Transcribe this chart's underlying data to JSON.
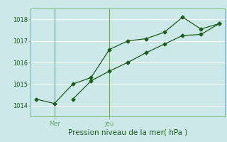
{
  "title": "Pression niveau de la mer( hPa )",
  "bg_color": "#cce8e8",
  "grid_color": "#ffffff",
  "line_color": "#1a5e1a",
  "spine_color": "#6aaa6a",
  "ylim": [
    1013.5,
    1018.5
  ],
  "yticks": [
    1014,
    1015,
    1016,
    1017,
    1018
  ],
  "series1_x": [
    0,
    1,
    2,
    3,
    4,
    5,
    6,
    7,
    8,
    9,
    10
  ],
  "series1_y": [
    1014.3,
    1014.1,
    1015.0,
    1015.3,
    1016.6,
    1017.0,
    1017.1,
    1017.4,
    1018.1,
    1017.55,
    1017.8
  ],
  "series2_x": [
    2,
    3,
    4,
    5,
    6,
    7,
    8,
    9,
    10
  ],
  "series2_y": [
    1014.3,
    1015.15,
    1015.6,
    1016.0,
    1016.45,
    1016.85,
    1017.25,
    1017.3,
    1017.8
  ],
  "xtick_positions": [
    1,
    4
  ],
  "xtick_labels": [
    "Mer",
    "Jeu"
  ],
  "vline_positions": [
    1,
    4
  ],
  "xlim": [
    -0.3,
    10.3
  ],
  "ylabel_fontsize": 6,
  "xlabel_fontsize": 7.5,
  "tick_fontsize": 6
}
